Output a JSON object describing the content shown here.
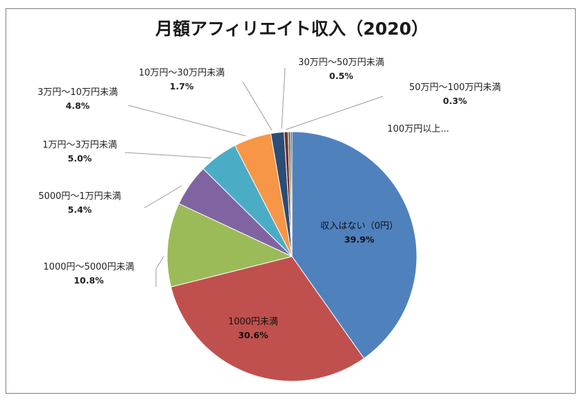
{
  "chart_data": {
    "type": "pie",
    "title": "月額アフィリエイト収入（2020）",
    "start_angle_deg": 0,
    "direction": "clockwise",
    "slices": [
      {
        "label": "収入はない（0円）",
        "value": 39.9,
        "value_label": "39.9%",
        "color": "#4f81bd"
      },
      {
        "label": "1000円未満",
        "value": 30.6,
        "value_label": "30.6%",
        "color": "#c0504d"
      },
      {
        "label": "1000円～5000円未満",
        "value": 10.8,
        "value_label": "10.8%",
        "color": "#9bbb59"
      },
      {
        "label": "5000円～1万円未満",
        "value": 5.4,
        "value_label": "5.4%",
        "color": "#8064a2"
      },
      {
        "label": "1万円～3万円未満",
        "value": 5.0,
        "value_label": "5.0%",
        "color": "#4bacc6"
      },
      {
        "label": "3万円～10万円未満",
        "value": 4.8,
        "value_label": "4.8%",
        "color": "#f79646"
      },
      {
        "label": "10万円～30万円未満",
        "value": 1.7,
        "value_label": "1.7%",
        "color": "#2c4d75"
      },
      {
        "label": "30万円～50万円未満",
        "value": 0.5,
        "value_label": "0.5%",
        "color": "#772c2a"
      },
      {
        "label": "50万円～100万円未満",
        "value": 0.3,
        "value_label": "0.3%",
        "color": "#5f7530"
      },
      {
        "label": "100万円以上...",
        "value": 0.2,
        "value_label": "",
        "color": "#4d3b62"
      }
    ]
  }
}
